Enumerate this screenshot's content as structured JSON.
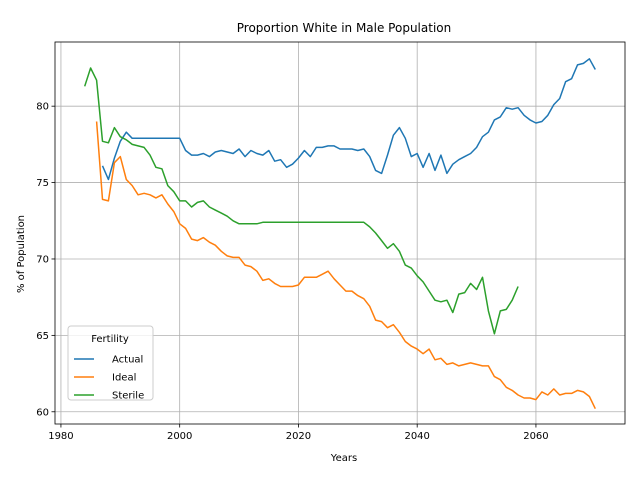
{
  "chart_data": {
    "type": "line",
    "title": "Proportion White in Male Population",
    "xlabel": "Years",
    "ylabel": "% of Population",
    "xlim": [
      1979,
      2075
    ],
    "ylim": [
      59.2,
      84.2
    ],
    "xticks": [
      1980,
      2000,
      2020,
      2040,
      2060
    ],
    "yticks": [
      60,
      65,
      70,
      75,
      80
    ],
    "grid": true,
    "legend": {
      "title": "Fertility",
      "placement": "lower-left"
    },
    "series": [
      {
        "name": "Actual",
        "color": "#1f77b4",
        "x": [
          1987,
          1988,
          1989,
          1990,
          1991,
          1992,
          1993,
          1994,
          1995,
          1996,
          1997,
          1998,
          1999,
          2000,
          2001,
          2002,
          2003,
          2004,
          2005,
          2006,
          2007,
          2008,
          2009,
          2010,
          2011,
          2012,
          2013,
          2014,
          2015,
          2016,
          2017,
          2018,
          2019,
          2020,
          2021,
          2022,
          2023,
          2024,
          2025,
          2026,
          2027,
          2028,
          2029,
          2030,
          2031,
          2032,
          2033,
          2034,
          2035,
          2036,
          2037,
          2038,
          2039,
          2040,
          2041,
          2042,
          2043,
          2044,
          2045,
          2046,
          2047,
          2048,
          2049,
          2050,
          2051,
          2052,
          2053,
          2054,
          2055,
          2056,
          2057,
          2058,
          2059,
          2060,
          2061,
          2062,
          2063,
          2064,
          2065,
          2066,
          2067,
          2068,
          2069,
          2070
        ],
        "y": [
          76.1,
          75.2,
          76.6,
          77.7,
          78.3,
          77.9,
          77.9,
          77.9,
          77.9,
          77.9,
          77.9,
          77.9,
          77.9,
          77.9,
          77.1,
          76.8,
          76.8,
          76.9,
          76.7,
          77.0,
          77.1,
          77.0,
          76.9,
          77.2,
          76.7,
          77.1,
          76.9,
          76.8,
          77.1,
          76.4,
          76.5,
          76.0,
          76.2,
          76.6,
          77.1,
          76.7,
          77.3,
          77.3,
          77.4,
          77.4,
          77.2,
          77.2,
          77.2,
          77.1,
          77.2,
          76.7,
          75.8,
          75.6,
          76.8,
          78.1,
          78.6,
          77.9,
          76.7,
          76.9,
          76.0,
          76.9,
          75.8,
          76.8,
          75.6,
          76.2,
          76.5,
          76.7,
          76.9,
          77.3,
          78.0,
          78.3,
          79.1,
          79.3,
          79.9,
          79.8,
          79.9,
          79.4,
          79.1,
          78.9,
          79.0,
          79.4,
          80.1,
          80.5,
          81.6,
          81.8,
          82.7,
          82.8,
          83.1,
          82.4
        ]
      },
      {
        "name": "Ideal",
        "color": "#ff7f0e",
        "x": [
          1986,
          1987,
          1988,
          1989,
          1990,
          1991,
          1992,
          1993,
          1994,
          1995,
          1996,
          1997,
          1998,
          1999,
          2000,
          2001,
          2002,
          2003,
          2004,
          2005,
          2006,
          2007,
          2008,
          2009,
          2010,
          2011,
          2012,
          2013,
          2014,
          2015,
          2016,
          2017,
          2018,
          2019,
          2020,
          2021,
          2022,
          2023,
          2024,
          2025,
          2026,
          2027,
          2028,
          2029,
          2030,
          2031,
          2032,
          2033,
          2034,
          2035,
          2036,
          2037,
          2038,
          2039,
          2040,
          2041,
          2042,
          2043,
          2044,
          2045,
          2046,
          2047,
          2048,
          2049,
          2050,
          2051,
          2052,
          2053,
          2054,
          2055,
          2056,
          2057,
          2058,
          2059,
          2060,
          2061,
          2062,
          2063,
          2064,
          2065,
          2066,
          2067,
          2068,
          2069,
          2070
        ],
        "y": [
          79.0,
          73.9,
          73.8,
          76.3,
          76.7,
          75.2,
          74.8,
          74.2,
          74.3,
          74.2,
          74.0,
          74.2,
          73.6,
          73.1,
          72.3,
          72.0,
          71.3,
          71.2,
          71.4,
          71.1,
          70.9,
          70.5,
          70.2,
          70.1,
          70.1,
          69.6,
          69.5,
          69.2,
          68.6,
          68.7,
          68.4,
          68.2,
          68.2,
          68.2,
          68.3,
          68.8,
          68.8,
          68.8,
          69.0,
          69.2,
          68.7,
          68.3,
          67.9,
          67.9,
          67.6,
          67.4,
          66.9,
          66.0,
          65.9,
          65.5,
          65.7,
          65.2,
          64.6,
          64.3,
          64.1,
          63.8,
          64.1,
          63.4,
          63.5,
          63.1,
          63.2,
          63.0,
          63.1,
          63.2,
          63.1,
          63.0,
          63.0,
          62.3,
          62.1,
          61.6,
          61.4,
          61.1,
          60.9,
          60.9,
          60.8,
          61.3,
          61.1,
          61.5,
          61.1,
          61.2,
          61.2,
          61.4,
          61.3,
          61.0,
          60.2
        ]
      },
      {
        "name": "Sterile",
        "color": "#2ca02c",
        "x": [
          1984,
          1985,
          1986,
          1987,
          1988,
          1989,
          1990,
          1991,
          1992,
          1993,
          1994,
          1995,
          1996,
          1997,
          1998,
          1999,
          2000,
          2001,
          2002,
          2003,
          2004,
          2005,
          2006,
          2007,
          2008,
          2009,
          2010,
          2011,
          2012,
          2013,
          2014,
          2015,
          2016,
          2017,
          2018,
          2019,
          2020,
          2021,
          2022,
          2023,
          2024,
          2025,
          2026,
          2027,
          2028,
          2029,
          2030,
          2031,
          2032,
          2033,
          2034,
          2035,
          2036,
          2037,
          2038,
          2039,
          2040,
          2041,
          2042,
          2043,
          2044,
          2045,
          2046,
          2047,
          2048,
          2049,
          2050,
          2051,
          2052,
          2053,
          2054,
          2055,
          2056,
          2057
        ],
        "y": [
          81.3,
          82.5,
          81.7,
          77.7,
          77.6,
          78.6,
          78.0,
          77.8,
          77.5,
          77.4,
          77.3,
          76.8,
          76.0,
          75.9,
          74.8,
          74.4,
          73.8,
          73.8,
          73.4,
          73.7,
          73.8,
          73.4,
          73.2,
          73.0,
          72.8,
          72.5,
          72.3,
          72.3,
          72.3,
          72.3,
          72.4,
          72.4,
          72.4,
          72.4,
          72.4,
          72.4,
          72.4,
          72.4,
          72.4,
          72.4,
          72.4,
          72.4,
          72.4,
          72.4,
          72.4,
          72.4,
          72.4,
          72.4,
          72.1,
          71.7,
          71.2,
          70.7,
          71.0,
          70.5,
          69.6,
          69.4,
          68.9,
          68.5,
          67.9,
          67.3,
          67.2,
          67.3,
          66.5,
          67.7,
          67.8,
          68.4,
          68.0,
          68.8,
          66.6,
          65.1,
          66.6,
          66.7,
          67.3,
          68.2
        ]
      }
    ]
  }
}
